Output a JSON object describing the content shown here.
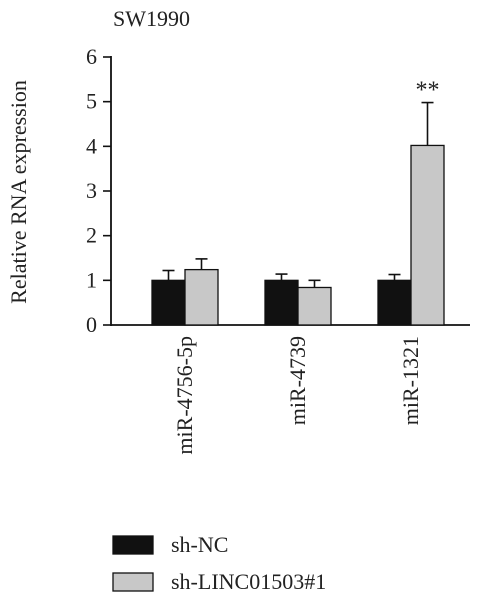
{
  "chart_data": {
    "type": "bar",
    "title": "SW1990",
    "ylabel": "Relative RNA expression",
    "xlabel": "",
    "ylim": [
      0,
      6
    ],
    "yticks": [
      "0",
      "1",
      "2",
      "3",
      "4",
      "5",
      "6"
    ],
    "categories": [
      "miR-4756-5p",
      "miR-4739",
      "miR-1321"
    ],
    "series": [
      {
        "name": "sh-NC",
        "values": [
          1.0,
          1.0,
          1.0
        ],
        "errors": [
          0.22,
          0.14,
          0.13
        ]
      },
      {
        "name": "sh-LINC01503#1",
        "values": [
          1.24,
          0.84,
          4.02
        ],
        "errors": [
          0.24,
          0.16,
          0.96
        ]
      }
    ],
    "annotations": [
      {
        "category": "miR-1321",
        "series": "sh-LINC01503#1",
        "text": "**"
      }
    ],
    "colors": {
      "sh-NC": "#111111",
      "sh-LINC01503#1": "#c8c8c8"
    },
    "grid": false,
    "legend_position": "bottom-center"
  }
}
